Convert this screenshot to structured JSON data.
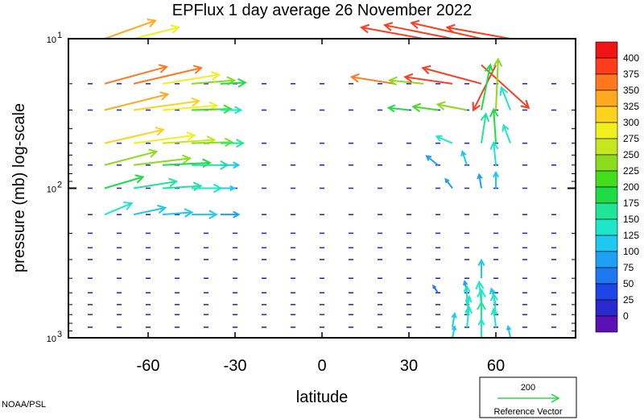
{
  "chart_data": {
    "type": "quiver",
    "title": "EPFlux  1 day average  26 November  2022",
    "xlabel": "latitude",
    "ylabel": "pressure (mb)  log-scale",
    "credit": "NOAA/PSL",
    "x_ticks": [
      -60,
      -30,
      0,
      30,
      60
    ],
    "x_tick_labels": [
      "-60",
      "-30",
      "0",
      "30",
      "60"
    ],
    "xlim": [
      -87.5,
      87.5
    ],
    "y_scale": "log",
    "y_ticks": [
      10,
      100,
      1000
    ],
    "y_tick_labels": [
      {
        "base": "10",
        "exp": "1"
      },
      {
        "base": "10",
        "exp": "2"
      },
      {
        "base": "10",
        "exp": "3"
      }
    ],
    "ylim": [
      1000,
      10
    ],
    "pressure_levels": [
      10,
      20,
      30,
      50,
      70,
      100,
      150,
      200,
      250,
      300,
      400,
      500,
      600,
      700,
      850,
      1000
    ],
    "colorbar": {
      "labels": [
        "0",
        "25",
        "50",
        "75",
        "100",
        "125",
        "150",
        "175",
        "200",
        "225",
        "250",
        "275",
        "300",
        "325",
        "350",
        "375",
        "400"
      ],
      "colors": [
        "#5a12b4",
        "#2a2acc",
        "#1e46e6",
        "#1e78f0",
        "#1ea0f5",
        "#1ec8f0",
        "#1ee6c8",
        "#1ee696",
        "#1edc46",
        "#46dc1e",
        "#8cdc1e",
        "#c8e61e",
        "#f0f01e",
        "#ffd21e",
        "#ffaa1e",
        "#ff781e",
        "#ff3c1e",
        "#f01414"
      ]
    },
    "reference_vector": {
      "value": "200",
      "label": "Reference Vector",
      "color": "#2ed84e"
    },
    "vectors": [
      {
        "lat": -75,
        "p": 20,
        "u": 55,
        "v": 15,
        "mag": 380
      },
      {
        "lat": -65,
        "p": 20,
        "u": 60,
        "v": 14,
        "mag": 390
      },
      {
        "lat": -55,
        "p": 20,
        "u": 50,
        "v": 8,
        "mag": 320
      },
      {
        "lat": -45,
        "p": 20,
        "u": 38,
        "v": 3,
        "mag": 260
      },
      {
        "lat": -35,
        "p": 20,
        "u": 22,
        "v": 1,
        "mag": 200
      },
      {
        "lat": -75,
        "p": 10,
        "u": 45,
        "v": 16,
        "mag": 360
      },
      {
        "lat": -65,
        "p": 10,
        "u": 40,
        "v": 10,
        "mag": 300
      },
      {
        "lat": -75,
        "p": 30,
        "u": 56,
        "v": 14,
        "mag": 370
      },
      {
        "lat": -65,
        "p": 30,
        "u": 58,
        "v": 8,
        "mag": 330
      },
      {
        "lat": -55,
        "p": 30,
        "u": 48,
        "v": 4,
        "mag": 300
      },
      {
        "lat": -45,
        "p": 30,
        "u": 35,
        "v": 1,
        "mag": 240
      },
      {
        "lat": -35,
        "p": 30,
        "u": 18,
        "v": 0,
        "mag": 160
      },
      {
        "lat": -75,
        "p": 50,
        "u": 52,
        "v": 12,
        "mag": 340
      },
      {
        "lat": -65,
        "p": 50,
        "u": 54,
        "v": 7,
        "mag": 320
      },
      {
        "lat": -55,
        "p": 50,
        "u": 46,
        "v": 3,
        "mag": 290
      },
      {
        "lat": -45,
        "p": 50,
        "u": 36,
        "v": 1,
        "mag": 250
      },
      {
        "lat": -35,
        "p": 50,
        "u": 20,
        "v": 0,
        "mag": 180
      },
      {
        "lat": -75,
        "p": 70,
        "u": 46,
        "v": 12,
        "mag": 270
      },
      {
        "lat": -65,
        "p": 70,
        "u": 50,
        "v": 6,
        "mag": 250
      },
      {
        "lat": -55,
        "p": 70,
        "u": 42,
        "v": 2,
        "mag": 220
      },
      {
        "lat": -45,
        "p": 70,
        "u": 32,
        "v": 0,
        "mag": 190
      },
      {
        "lat": -35,
        "p": 70,
        "u": 16,
        "v": 0,
        "mag": 140
      },
      {
        "lat": -75,
        "p": 100,
        "u": 34,
        "v": 10,
        "mag": 200
      },
      {
        "lat": -65,
        "p": 100,
        "u": 38,
        "v": 6,
        "mag": 190
      },
      {
        "lat": -55,
        "p": 100,
        "u": 34,
        "v": 2,
        "mag": 175
      },
      {
        "lat": -45,
        "p": 100,
        "u": 26,
        "v": 0,
        "mag": 160
      },
      {
        "lat": -35,
        "p": 100,
        "u": 12,
        "v": 0,
        "mag": 130
      },
      {
        "lat": -75,
        "p": 150,
        "u": 24,
        "v": 10,
        "mag": 150
      },
      {
        "lat": -65,
        "p": 150,
        "u": 28,
        "v": 6,
        "mag": 140
      },
      {
        "lat": -55,
        "p": 150,
        "u": 26,
        "v": 2,
        "mag": 130
      },
      {
        "lat": -45,
        "p": 150,
        "u": 22,
        "v": 0,
        "mag": 125
      },
      {
        "lat": -35,
        "p": 150,
        "u": 16,
        "v": 0,
        "mag": 115
      },
      {
        "lat": 25,
        "p": 20,
        "u": -38,
        "v": 6,
        "mag": 380
      },
      {
        "lat": 35,
        "p": 20,
        "u": -30,
        "v": 3,
        "mag": 270
      },
      {
        "lat": 45,
        "p": 20,
        "u": -42,
        "v": 6,
        "mag": 400
      },
      {
        "lat": 55,
        "p": 20,
        "u": -52,
        "v": 14,
        "mag": 400
      },
      {
        "lat": 35,
        "p": 10,
        "u": -55,
        "v": 10,
        "mag": 400
      },
      {
        "lat": 45,
        "p": 10,
        "u": -60,
        "v": 12,
        "mag": 400
      },
      {
        "lat": 55,
        "p": 10,
        "u": -62,
        "v": 14,
        "mag": 400
      },
      {
        "lat": 65,
        "p": 10,
        "u": -56,
        "v": 10,
        "mag": 400
      },
      {
        "lat": 55,
        "p": 15,
        "u": 42,
        "v": -38,
        "mag": 400
      },
      {
        "lat": 60,
        "p": 15,
        "u": -20,
        "v": -40,
        "mag": 400
      },
      {
        "lat": 30,
        "p": 30,
        "u": -18,
        "v": 2,
        "mag": 200
      },
      {
        "lat": 40,
        "p": 30,
        "u": -22,
        "v": 3,
        "mag": 230
      },
      {
        "lat": 50,
        "p": 30,
        "u": -26,
        "v": 5,
        "mag": 260
      },
      {
        "lat": 55,
        "p": 30,
        "u": 8,
        "v": 40,
        "mag": 220
      },
      {
        "lat": 60,
        "p": 30,
        "u": 2,
        "v": 45,
        "mag": 250
      },
      {
        "lat": 65,
        "p": 30,
        "u": -8,
        "v": 20,
        "mag": 170
      },
      {
        "lat": 45,
        "p": 50,
        "u": -14,
        "v": 6,
        "mag": 150
      },
      {
        "lat": 55,
        "p": 50,
        "u": 4,
        "v": 26,
        "mag": 190
      },
      {
        "lat": 60,
        "p": 50,
        "u": -2,
        "v": 30,
        "mag": 210
      },
      {
        "lat": 65,
        "p": 50,
        "u": -6,
        "v": 16,
        "mag": 150
      },
      {
        "lat": 40,
        "p": 70,
        "u": -10,
        "v": 8,
        "mag": 110
      },
      {
        "lat": 50,
        "p": 70,
        "u": -4,
        "v": 12,
        "mag": 140
      },
      {
        "lat": 60,
        "p": 70,
        "u": -2,
        "v": 20,
        "mag": 160
      },
      {
        "lat": 45,
        "p": 100,
        "u": -6,
        "v": 8,
        "mag": 100
      },
      {
        "lat": 55,
        "p": 100,
        "u": -2,
        "v": 12,
        "mag": 120
      },
      {
        "lat": 60,
        "p": 100,
        "u": 0,
        "v": 14,
        "mag": 130
      },
      {
        "lat": 40,
        "p": 500,
        "u": -4,
        "v": 6,
        "mag": 95
      },
      {
        "lat": 50,
        "p": 500,
        "u": -2,
        "v": 10,
        "mag": 110
      },
      {
        "lat": 55,
        "p": 400,
        "u": 0,
        "v": 16,
        "mag": 140
      },
      {
        "lat": 50,
        "p": 600,
        "u": 0,
        "v": 16,
        "mag": 150
      },
      {
        "lat": 55,
        "p": 600,
        "u": -2,
        "v": 20,
        "mag": 160
      },
      {
        "lat": 60,
        "p": 600,
        "u": -4,
        "v": 14,
        "mag": 140
      },
      {
        "lat": 50,
        "p": 700,
        "u": 2,
        "v": 16,
        "mag": 150
      },
      {
        "lat": 55,
        "p": 700,
        "u": 0,
        "v": 22,
        "mag": 170
      },
      {
        "lat": 60,
        "p": 700,
        "u": -2,
        "v": 18,
        "mag": 160
      },
      {
        "lat": 45,
        "p": 850,
        "u": 2,
        "v": 12,
        "mag": 140
      },
      {
        "lat": 50,
        "p": 850,
        "u": 2,
        "v": 18,
        "mag": 160
      },
      {
        "lat": 55,
        "p": 850,
        "u": 0,
        "v": 22,
        "mag": 175
      },
      {
        "lat": 60,
        "p": 850,
        "u": -2,
        "v": 16,
        "mag": 150
      },
      {
        "lat": 45,
        "p": 1000,
        "u": 2,
        "v": 10,
        "mag": 130
      },
      {
        "lat": 55,
        "p": 1000,
        "u": 0,
        "v": 16,
        "mag": 160
      },
      {
        "lat": 65,
        "p": 1000,
        "u": -2,
        "v": 10,
        "mag": 130
      }
    ]
  }
}
